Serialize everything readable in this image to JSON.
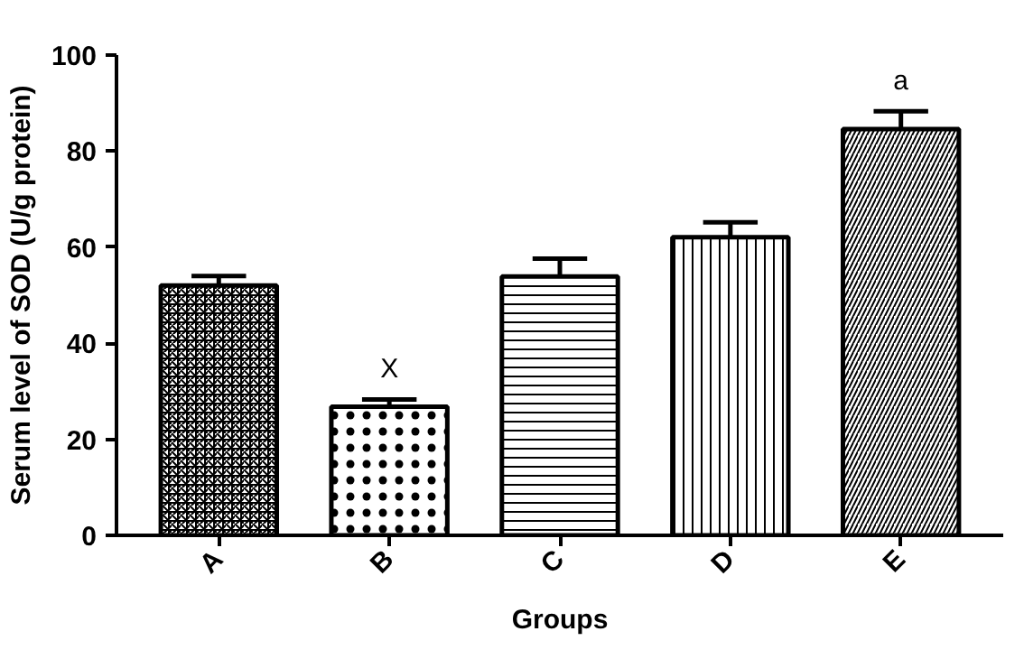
{
  "chart_data": {
    "type": "bar",
    "xlabel": "Groups",
    "ylabel": "Serum level of SOD (U/g protein)",
    "categories": [
      "A",
      "B",
      "C",
      "D",
      "E"
    ],
    "values": [
      52,
      26.8,
      53.9,
      62.1,
      84.6
    ],
    "errors": [
      [
        52,
        54
      ],
      [
        26.8,
        28.3
      ],
      [
        53.9,
        57.6
      ],
      [
        62.1,
        65.2
      ],
      [
        84.6,
        88.3
      ]
    ],
    "color": "#000000",
    "ylim": [
      0,
      100
    ],
    "yticks": [
      0,
      20,
      40,
      60,
      80,
      100
    ],
    "annotations": [
      {
        "text": "X",
        "x": "B",
        "y": 28.3
      },
      {
        "text": "a",
        "x": "E",
        "y": 88.3
      }
    ],
    "grid": false
  }
}
